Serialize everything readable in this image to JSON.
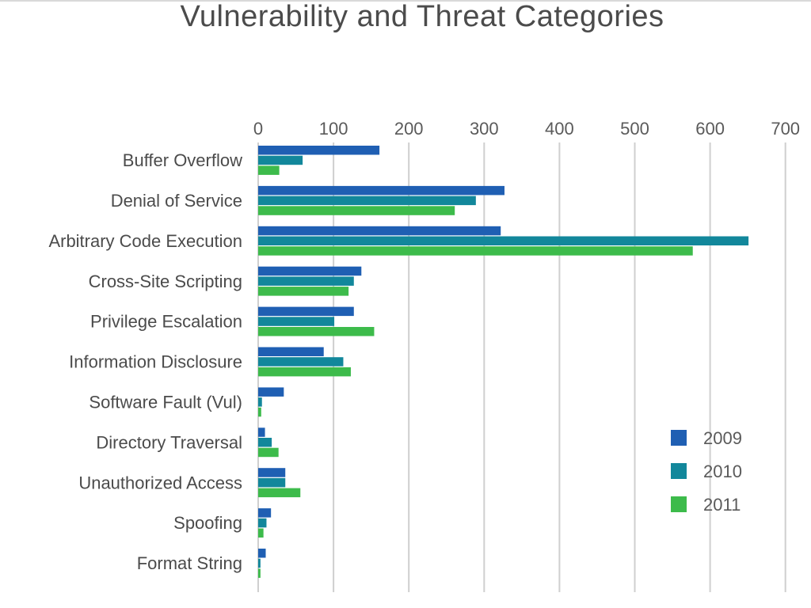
{
  "chart_data": {
    "type": "bar",
    "orientation": "horizontal",
    "title": "Vulnerability and Threat Categories",
    "xlabel": "",
    "ylabel": "",
    "xlim": [
      0,
      700
    ],
    "xticks": [
      0,
      100,
      200,
      300,
      400,
      500,
      600,
      700
    ],
    "tick_position": "top",
    "grid": true,
    "legend_position": "bottom-right",
    "categories": [
      "Buffer Overflow",
      "Denial of Service",
      "Arbitrary Code Execution",
      "Cross-Site Scripting",
      "Privilege Escalation",
      "Information Disclosure",
      "Software Fault (Vul)",
      "Directory Traversal",
      "Unauthorized Access",
      "Spoofing",
      "Format String"
    ],
    "series": [
      {
        "name": "2009",
        "color": "#1f5fb3",
        "values": [
          161,
          327,
          322,
          137,
          127,
          87,
          34,
          9,
          36,
          17,
          10
        ]
      },
      {
        "name": "2010",
        "color": "#12879b",
        "values": [
          59,
          289,
          651,
          127,
          101,
          113,
          5,
          18,
          36,
          11,
          3
        ]
      },
      {
        "name": "2011",
        "color": "#3dbb4b",
        "values": [
          28,
          261,
          577,
          120,
          154,
          123,
          4,
          27,
          56,
          7,
          3
        ]
      }
    ]
  }
}
